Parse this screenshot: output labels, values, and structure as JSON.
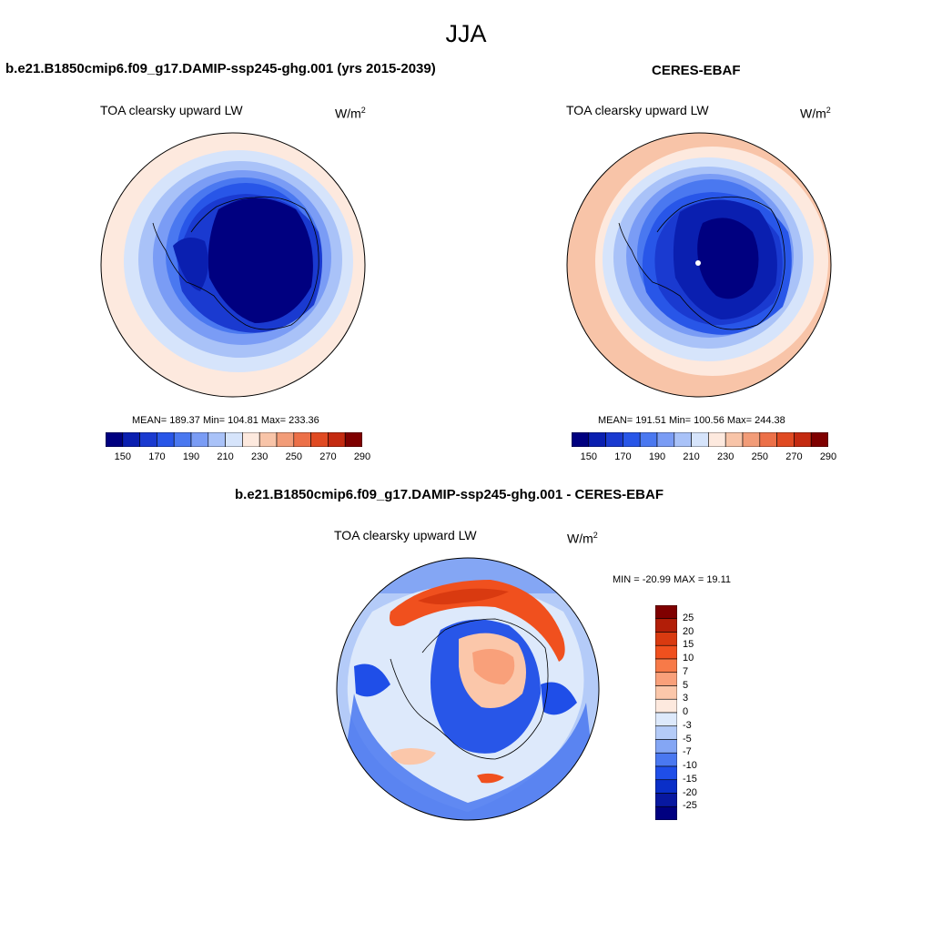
{
  "figure": {
    "title": "JJA"
  },
  "panels": [
    {
      "title": "b.e21.B1850cmip6.f09_g17.DAMIP-ssp245-ghg.001 (yrs 2015-2039)",
      "variable": "TOA clearsky upward LW",
      "units_base": "W/m",
      "units_exp": "2",
      "stats": "MEAN= 189.37  Min= 104.81  Max= 233.36"
    },
    {
      "title": "CERES-EBAF",
      "variable": "TOA clearsky upward LW",
      "units_base": "W/m",
      "units_exp": "2",
      "stats": "MEAN= 191.51  Min= 100.56  Max= 244.38"
    },
    {
      "title": "b.e21.B1850cmip6.f09_g17.DAMIP-ssp245-ghg.001 - CERES-EBAF",
      "variable": "TOA clearsky upward LW",
      "units_base": "W/m",
      "units_exp": "2",
      "stats": "MIN = -20.99 MAX =  19.11"
    }
  ],
  "colorbar_abs": {
    "labels": [
      "150",
      "170",
      "190",
      "210",
      "230",
      "250",
      "270",
      "290"
    ],
    "colors": [
      "#000080",
      "#0a1fb0",
      "#1a3ad0",
      "#2856e8",
      "#4a78f0",
      "#7a9cf5",
      "#a9c2f8",
      "#d6e4fb",
      "#fde9de",
      "#f8c4a8",
      "#f29c78",
      "#ec7048",
      "#e04a22",
      "#c42a10",
      "#7f0000"
    ]
  },
  "colorbar_diff": {
    "labels": [
      "25",
      "20",
      "15",
      "10",
      "7",
      "5",
      "3",
      "0",
      "-3",
      "-5",
      "-7",
      "-10",
      "-15",
      "-20",
      "-25"
    ],
    "colors": [
      "#7f0000",
      "#b21e08",
      "#d93a10",
      "#f0501e",
      "#f77a48",
      "#f9a07a",
      "#fbc7aa",
      "#fde9de",
      "#dde9fb",
      "#b4cbf8",
      "#84a6f4",
      "#4a78f0",
      "#1f4ee8",
      "#0a2fc8",
      "#0818a0",
      "#000080"
    ]
  }
}
